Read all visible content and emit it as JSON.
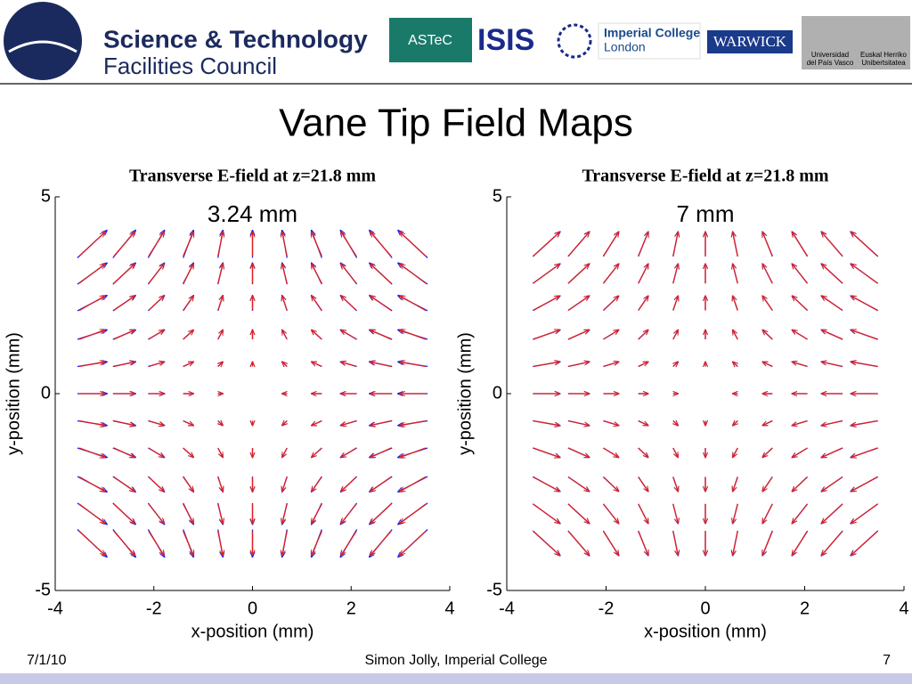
{
  "header": {
    "org_line1": "Science & Technology",
    "org_line2": "Facilities Council",
    "logo_astec": "ASTeC",
    "logo_isis": "ISIS",
    "logo_imperial1": "Imperial College",
    "logo_imperial2": "London",
    "logo_warwick": "WARWICK",
    "logo_upv1": "Universidad",
    "logo_upv2": "del País Vasco",
    "logo_upv3": "Euskal Herriko",
    "logo_upv4": "Unibertsitatea"
  },
  "title": "Vane Tip Field Maps",
  "footer": {
    "date": "7/1/10",
    "author": "Simon Jolly, Imperial College",
    "page": "7"
  },
  "chart_data": [
    {
      "type": "quiver",
      "title": "Transverse E-field at z=21.8 mm",
      "annotation": "3.24 mm",
      "xlabel": "x-position (mm)",
      "ylabel": "y-position (mm)",
      "xlim": [
        -4,
        4
      ],
      "ylim": [
        -5,
        5
      ],
      "xticks": [
        -4,
        -2,
        0,
        2,
        4
      ],
      "yticks": [
        -5,
        0,
        5
      ],
      "x": [
        -3.25,
        -2.6,
        -1.95,
        -1.3,
        -0.65,
        0,
        0.65,
        1.3,
        1.95,
        2.6,
        3.25
      ],
      "y": [
        3.8,
        3.05,
        2.3,
        1.5,
        0.75,
        0,
        -0.75,
        -1.5,
        -2.3,
        -3.05,
        -3.8
      ],
      "series": [
        {
          "color": "#2020e0",
          "u": [
            0.6,
            0.46,
            0.33,
            0.21,
            0.1,
            0,
            -0.1,
            -0.21,
            -0.33,
            -0.46,
            -0.6
          ],
          "v": [
            0.7,
            0.54,
            0.39,
            0.24,
            0.12,
            0,
            -0.12,
            -0.24,
            -0.39,
            -0.54,
            -0.7
          ]
        },
        {
          "color": "#e02020",
          "u": [
            0.52,
            0.42,
            0.31,
            0.21,
            0.1,
            0,
            -0.1,
            -0.21,
            -0.31,
            -0.42,
            -0.52
          ],
          "v": [
            0.61,
            0.49,
            0.37,
            0.24,
            0.12,
            0,
            -0.12,
            -0.24,
            -0.37,
            -0.49,
            -0.61
          ]
        }
      ]
    },
    {
      "type": "quiver",
      "title": "Transverse E-field at z=21.8 mm",
      "annotation": "7 mm",
      "xlabel": "x-position (mm)",
      "ylabel": "y-position (mm)",
      "xlim": [
        -4,
        4
      ],
      "ylim": [
        -5,
        5
      ],
      "xticks": [
        -4,
        -2,
        0,
        2,
        4
      ],
      "yticks": [
        -5,
        0,
        5
      ],
      "x": [
        -3.2,
        -2.55,
        -1.9,
        -1.25,
        -0.6,
        0,
        0.6,
        1.25,
        1.9,
        2.55,
        3.2
      ],
      "y": [
        3.8,
        3.05,
        2.3,
        1.5,
        0.75,
        0,
        -0.75,
        -1.5,
        -2.3,
        -3.05,
        -3.8
      ],
      "series": [
        {
          "color": "#2020e0",
          "u": [
            0.55,
            0.43,
            0.31,
            0.2,
            0.1,
            0,
            -0.1,
            -0.2,
            -0.31,
            -0.43,
            -0.55
          ],
          "v": [
            0.63,
            0.5,
            0.37,
            0.24,
            0.12,
            0,
            -0.12,
            -0.24,
            -0.37,
            -0.5,
            -0.63
          ]
        },
        {
          "color": "#e02020",
          "u": [
            0.53,
            0.42,
            0.31,
            0.2,
            0.1,
            0,
            -0.1,
            -0.2,
            -0.31,
            -0.42,
            -0.53
          ],
          "v": [
            0.61,
            0.49,
            0.37,
            0.24,
            0.12,
            0,
            -0.12,
            -0.24,
            -0.37,
            -0.49,
            -0.61
          ]
        }
      ]
    }
  ]
}
